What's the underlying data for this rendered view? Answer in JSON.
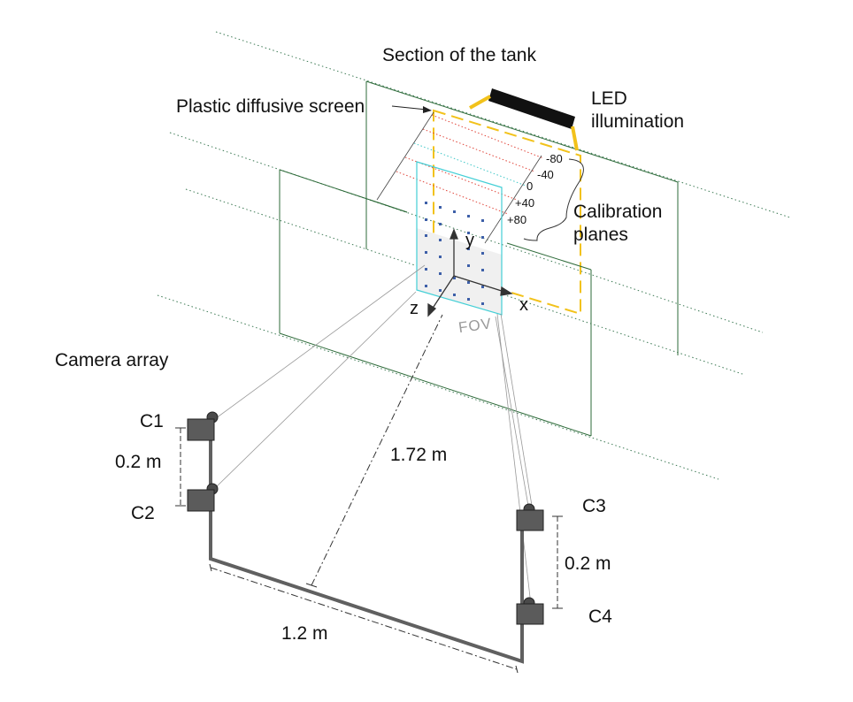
{
  "labels": {
    "section": "Section of the tank",
    "screen": "Plastic diffusive screen",
    "led_line1": "LED",
    "led_line2": "illumination",
    "calib_line1": "Calibration",
    "calib_line2": "planes",
    "camera_array": "Camera array",
    "fov": "FOV",
    "axis_x": "x",
    "axis_y": "y",
    "axis_z": "z"
  },
  "planes": [
    "-80",
    "-40",
    "0",
    "+40",
    "+80"
  ],
  "cameras": {
    "c1": "C1",
    "c2": "C2",
    "c3": "C3",
    "c4": "C4"
  },
  "dimensions": {
    "vertical_left": "0.2 m",
    "vertical_right": "0.2 m",
    "distance": "1.72 m",
    "baseline": "1.2 m"
  },
  "colors": {
    "tank": "#2e6b3a",
    "led_frame": "#f2c21b",
    "fov": "#43cfd6",
    "plane_red": "#e0453a",
    "plane_cyan": "#3fc7c7",
    "camera": "#5b5b5b",
    "bar": "#606060"
  }
}
